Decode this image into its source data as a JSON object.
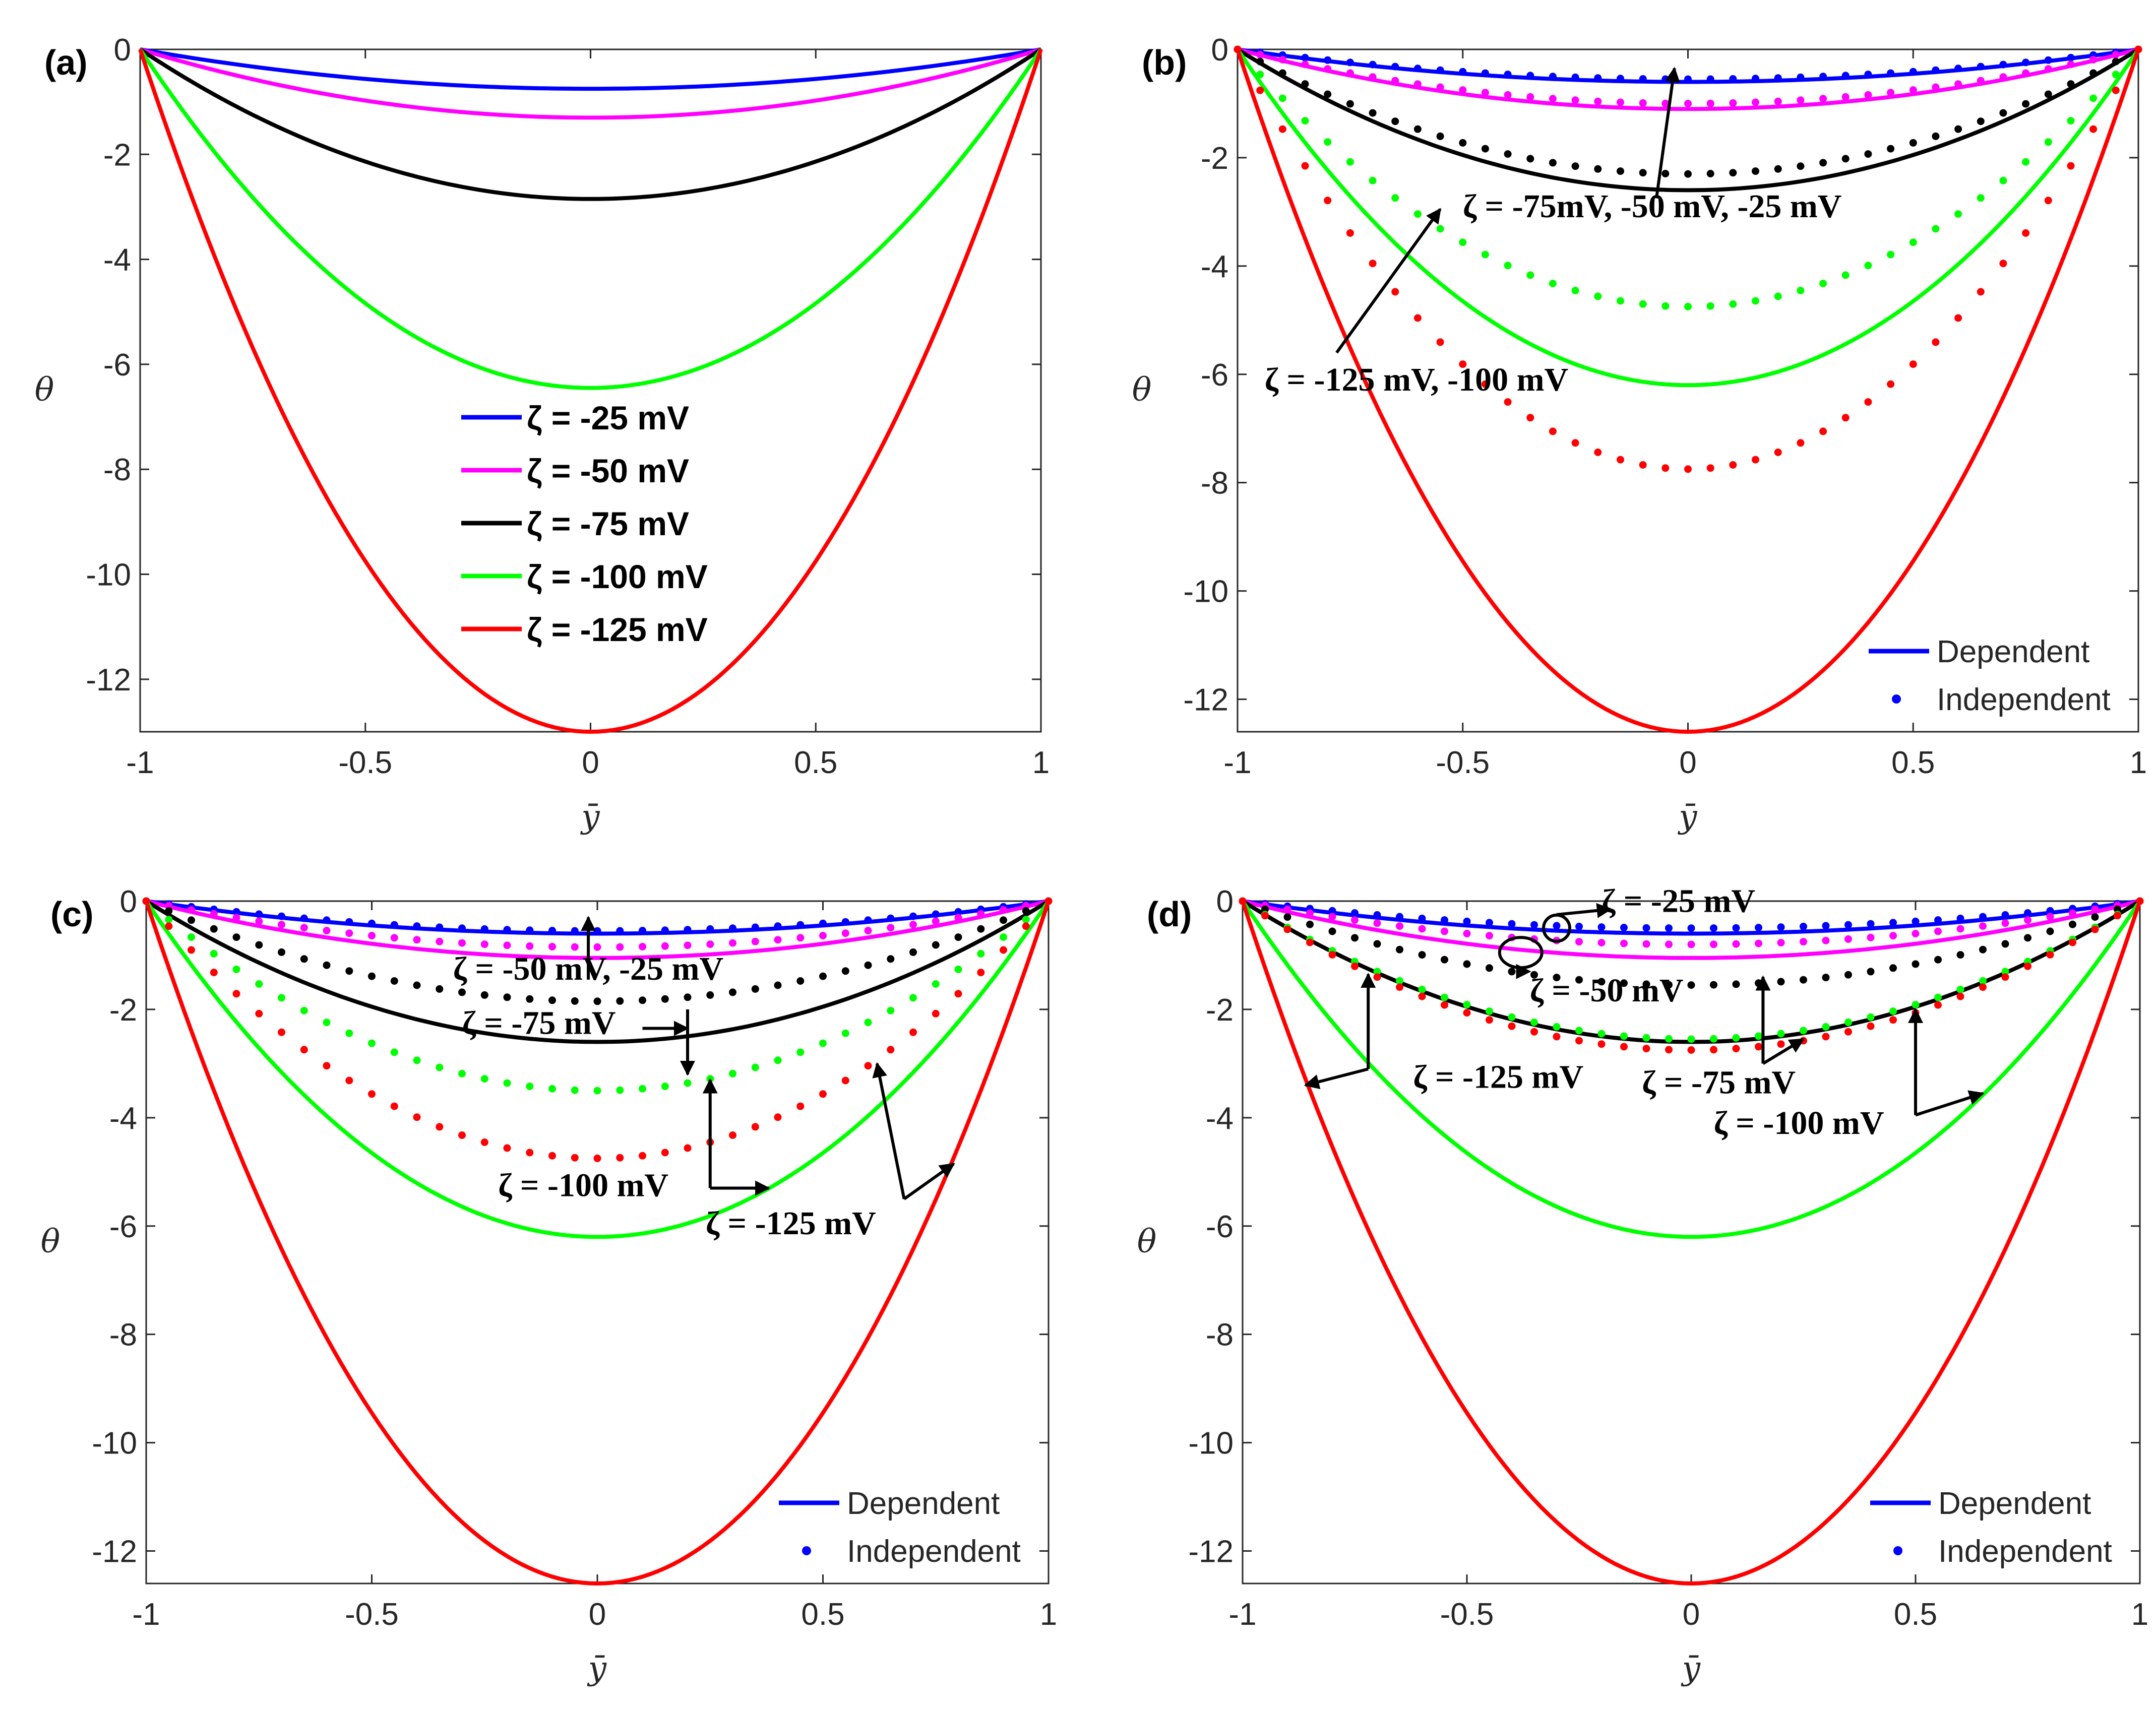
{
  "chart_data": [
    {
      "type": "line",
      "panel": "(a)",
      "xlabel": "ȳ",
      "ylabel": "θ",
      "xlim": [
        -1,
        1
      ],
      "ylim": [
        -13,
        0
      ],
      "xticks": [
        "-1",
        "-0.5",
        "0",
        "0.5",
        "1"
      ],
      "yticks": [
        "0",
        "-2",
        "-4",
        "-6",
        "-8",
        "-10",
        "-12"
      ],
      "legend_position": "center",
      "series": [
        {
          "name": "ζ = -25 mV",
          "style": "line",
          "color": "#0000ff",
          "min": -0.75
        },
        {
          "name": "ζ = -50 mV",
          "style": "line",
          "color": "#ff00ff",
          "min": -1.3
        },
        {
          "name": "ζ = -75 mV",
          "style": "line",
          "color": "#000000",
          "min": -2.85
        },
        {
          "name": "ζ = -100 mV",
          "style": "line",
          "color": "#00ff00",
          "min": -6.45
        },
        {
          "name": "ζ = -125 mV",
          "style": "line",
          "color": "#ff0000",
          "min": -13.0
        }
      ]
    },
    {
      "type": "line",
      "panel": "(b)",
      "xlabel": "ȳ",
      "ylabel": "θ",
      "xlim": [
        -1,
        1
      ],
      "ylim": [
        -12.6,
        0
      ],
      "xticks": [
        "-1",
        "-0.5",
        "0",
        "0.5",
        "1"
      ],
      "yticks": [
        "0",
        "-2",
        "-4",
        "-6",
        "-8",
        "-10",
        "-12"
      ],
      "legend": [
        "Dependent",
        "Independent"
      ],
      "legend_position": "bottom-right",
      "series": [
        {
          "name": "ζ = -25 mV (Dependent)",
          "style": "line",
          "color": "#0000ff",
          "min": -0.6
        },
        {
          "name": "ζ = -50 mV (Dependent)",
          "style": "line",
          "color": "#ff00ff",
          "min": -1.1
        },
        {
          "name": "ζ = -75 mV (Dependent)",
          "style": "line",
          "color": "#000000",
          "min": -2.6
        },
        {
          "name": "ζ = -100 mV (Dependent)",
          "style": "line",
          "color": "#00ff00",
          "min": -6.2
        },
        {
          "name": "ζ = -125 mV (Dependent)",
          "style": "line",
          "color": "#ff0000",
          "min": -12.6
        },
        {
          "name": "ζ = -25 mV (Independent)",
          "style": "dots",
          "color": "#0000ff",
          "min": -0.55
        },
        {
          "name": "ζ = -50 mV (Independent)",
          "style": "dots",
          "color": "#ff00ff",
          "min": -1.0
        },
        {
          "name": "ζ = -75 mV (Independent)",
          "style": "dots",
          "color": "#000000",
          "min": -2.3
        },
        {
          "name": "ζ = -100 mV (Independent)",
          "style": "dots",
          "color": "#00ff00",
          "min": -4.75
        },
        {
          "name": "ζ = -125 mV (Independent)",
          "style": "dots",
          "color": "#ff0000",
          "min": -7.75
        }
      ],
      "annotations": [
        {
          "text": "ζ = -75mV, -50 mV, -25 mV",
          "x": -0.5,
          "y": -3.1
        },
        {
          "text": "ζ = -125 mV, -100 mV",
          "x": -0.94,
          "y": -6.3
        }
      ]
    },
    {
      "type": "line",
      "panel": "(c)",
      "xlabel": "ȳ",
      "ylabel": "θ",
      "xlim": [
        -1,
        1
      ],
      "ylim": [
        -12.6,
        0
      ],
      "xticks": [
        "-1",
        "-0.5",
        "0",
        "0.5",
        "1"
      ],
      "yticks": [
        "0",
        "-2",
        "-4",
        "-6",
        "-8",
        "-10",
        "-12"
      ],
      "legend": [
        "Dependent",
        "Independent"
      ],
      "legend_position": "bottom-right",
      "series": [
        {
          "name": "ζ = -25 mV (Dependent)",
          "style": "line",
          "color": "#0000ff",
          "min": -0.6
        },
        {
          "name": "ζ = -50 mV (Dependent)",
          "style": "line",
          "color": "#ff00ff",
          "min": -1.05
        },
        {
          "name": "ζ = -75 mV (Dependent)",
          "style": "line",
          "color": "#000000",
          "min": -2.6
        },
        {
          "name": "ζ = -100 mV (Dependent)",
          "style": "line",
          "color": "#00ff00",
          "min": -6.2
        },
        {
          "name": "ζ = -125 mV (Dependent)",
          "style": "line",
          "color": "#ff0000",
          "min": -12.6
        },
        {
          "name": "ζ = -25 mV (Independent)",
          "style": "dots",
          "color": "#0000ff",
          "min": -0.55
        },
        {
          "name": "ζ = -50 mV (Independent)",
          "style": "dots",
          "color": "#ff00ff",
          "min": -0.85
        },
        {
          "name": "ζ = -75 mV (Independent)",
          "style": "dots",
          "color": "#000000",
          "min": -1.85
        },
        {
          "name": "ζ = -100 mV (Independent)",
          "style": "dots",
          "color": "#00ff00",
          "min": -3.5
        },
        {
          "name": "ζ = -125 mV (Independent)",
          "style": "dots",
          "color": "#ff0000",
          "min": -4.75
        }
      ],
      "annotations": [
        {
          "text": "ζ = -50 mV, -25 mV",
          "x": -0.32,
          "y": -1.45
        },
        {
          "text": "ζ = -75 mV",
          "x": -0.3,
          "y": -2.45
        },
        {
          "text": "ζ = -100 mV",
          "x": -0.22,
          "y": -5.45
        },
        {
          "text": "ζ = -125 mV",
          "x": 0.24,
          "y": -6.15
        }
      ]
    },
    {
      "type": "line",
      "panel": "(d)",
      "xlabel": "ȳ",
      "ylabel": "θ",
      "xlim": [
        -1,
        1
      ],
      "ylim": [
        -12.6,
        0
      ],
      "xticks": [
        "-1",
        "-0.5",
        "0",
        "0.5",
        "1"
      ],
      "yticks": [
        "0",
        "-2",
        "-4",
        "-6",
        "-8",
        "-10",
        "-12"
      ],
      "legend": [
        "Dependent",
        "Independent"
      ],
      "legend_position": "bottom-right",
      "series": [
        {
          "name": "ζ = -25 mV (Dependent)",
          "style": "line",
          "color": "#0000ff",
          "min": -0.6
        },
        {
          "name": "ζ = -50 mV (Dependent)",
          "style": "line",
          "color": "#ff00ff",
          "min": -1.05
        },
        {
          "name": "ζ = -75 mV (Dependent)",
          "style": "line",
          "color": "#000000",
          "min": -2.6
        },
        {
          "name": "ζ = -100 mV (Dependent)",
          "style": "line",
          "color": "#00ff00",
          "min": -6.2
        },
        {
          "name": "ζ = -125 mV (Dependent)",
          "style": "line",
          "color": "#ff0000",
          "min": -12.6
        },
        {
          "name": "ζ = -25 mV (Independent)",
          "style": "dots",
          "color": "#0000ff",
          "min": -0.5
        },
        {
          "name": "ζ = -50 mV (Independent)",
          "style": "dots",
          "color": "#ff00ff",
          "min": -0.8
        },
        {
          "name": "ζ = -75 mV (Independent)",
          "style": "dots",
          "color": "#000000",
          "min": -1.55
        },
        {
          "name": "ζ = -100 mV (Independent)",
          "style": "dots",
          "color": "#00ff00",
          "min": -2.55
        },
        {
          "name": "ζ = -125 mV (Independent)",
          "style": "dots",
          "color": "#ff0000",
          "min": -2.75
        }
      ],
      "annotations": [
        {
          "text": "ζ = -25 mV",
          "x": -0.2,
          "y": -0.2
        },
        {
          "text": "ζ = -50 mV",
          "x": -0.36,
          "y": -1.85
        },
        {
          "text": "ζ = -125 mV",
          "x": -0.62,
          "y": -3.45
        },
        {
          "text": "ζ = -75 mV",
          "x": -0.11,
          "y": -3.55
        },
        {
          "text": "ζ = -100 mV",
          "x": 0.05,
          "y": -4.3
        }
      ]
    }
  ]
}
